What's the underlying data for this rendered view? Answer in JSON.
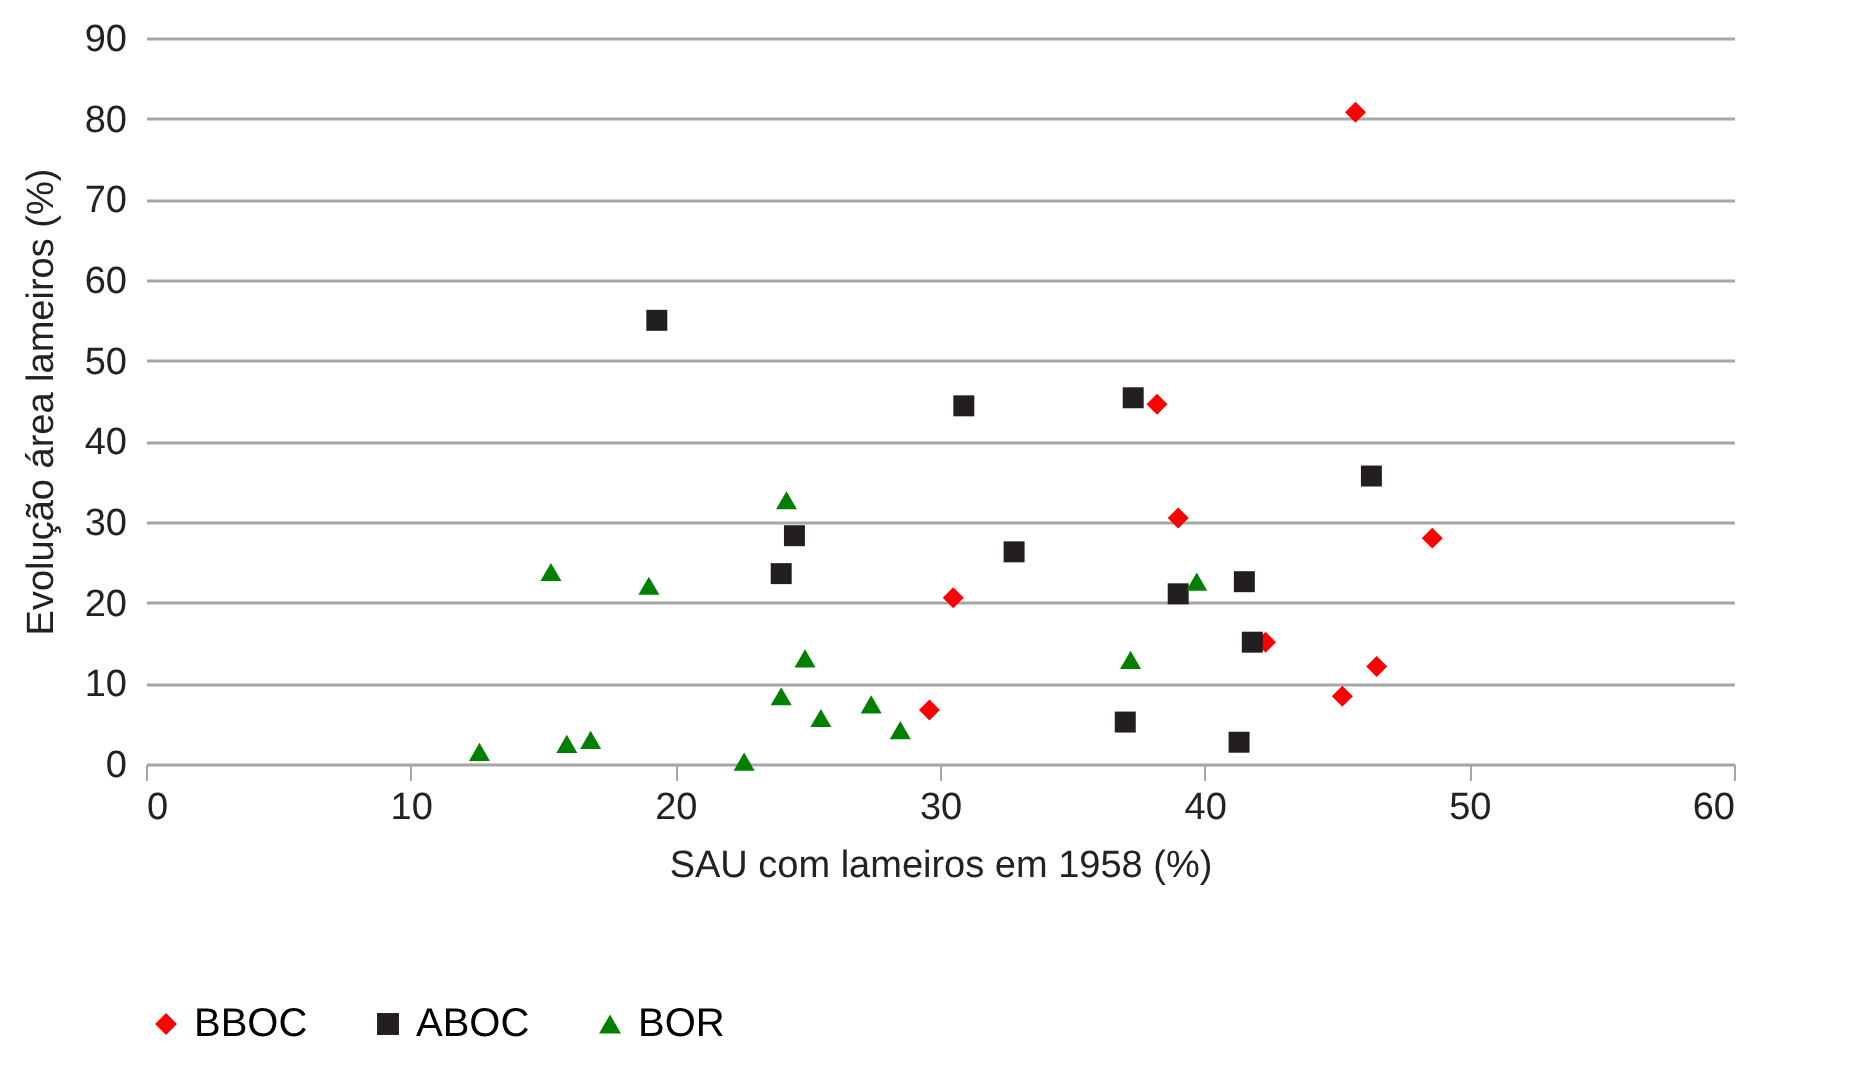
{
  "chart_data": {
    "type": "scatter",
    "xlabel": "SAU com lameiros em 1958 (%)",
    "ylabel": "Evolução área lameiros (%)",
    "xlim": [
      0,
      60
    ],
    "xticks": [
      0,
      10,
      20,
      30,
      40,
      50,
      60
    ],
    "ylim": [
      0,
      90
    ],
    "yticks": [
      0,
      10,
      20,
      30,
      40,
      50,
      60,
      70,
      80,
      90
    ],
    "grid": "y",
    "legend": "bottom",
    "series": [
      {
        "name": "BBOC",
        "color": "#ff0000",
        "marker": "diamond",
        "x": [
          29.6,
          30.5,
          38.2,
          39.0,
          42.3,
          45.7,
          48.6,
          46.5,
          45.2
        ],
        "values": [
          6.7,
          20.6,
          44.6,
          30.5,
          15.1,
          80.8,
          28.0,
          12.1,
          8.4
        ]
      },
      {
        "name": "ABOC",
        "color": "#231f20",
        "marker": "square",
        "x": [
          19.3,
          24.5,
          24.0,
          30.9,
          32.8,
          37.3,
          46.3,
          39.0,
          41.5,
          41.8,
          37.0,
          41.3
        ],
        "values": [
          55.0,
          28.3,
          23.6,
          44.4,
          26.3,
          45.4,
          35.7,
          21.1,
          22.6,
          15.1,
          5.2,
          2.7
        ]
      },
      {
        "name": "BOR",
        "color": "#008000",
        "marker": "triangle",
        "x": [
          12.6,
          15.9,
          16.8,
          22.6,
          15.3,
          19.0,
          24.2,
          24.9,
          24.0,
          25.5,
          27.4,
          28.5,
          37.2,
          39.7
        ],
        "values": [
          1.5,
          2.5,
          3.0,
          0.3,
          23.8,
          22.1,
          32.7,
          13.1,
          8.4,
          5.7,
          7.4,
          4.2,
          12.9,
          22.6
        ]
      }
    ]
  }
}
